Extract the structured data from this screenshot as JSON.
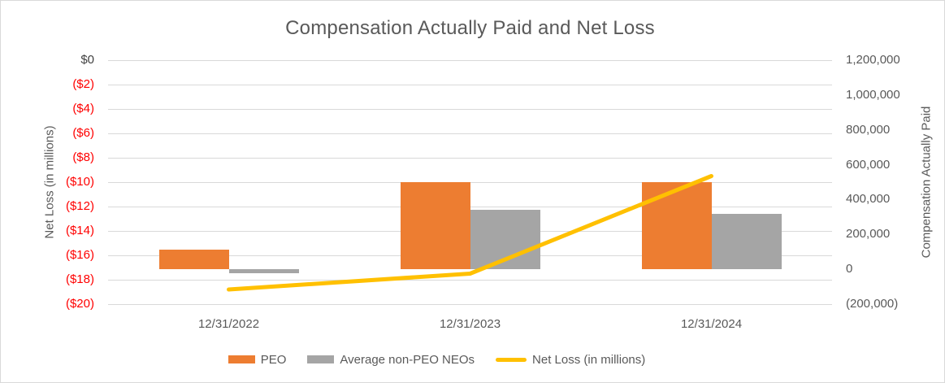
{
  "chart_data": {
    "type": "combo-bar-line",
    "title": "Compensation Actually Paid and Net Loss",
    "categories": [
      "12/31/2022",
      "12/31/2023",
      "12/31/2024"
    ],
    "bar_series": [
      {
        "name": "PEO",
        "color": "#ED7D31",
        "axis": "right",
        "values": [
          112000,
          500000,
          500000
        ]
      },
      {
        "name": "Average non-PEO NEOs",
        "color": "#A5A5A5",
        "axis": "right",
        "values": [
          -23000,
          340000,
          320000
        ]
      }
    ],
    "line_series": {
      "name": "Net Loss (in millions)",
      "color": "#FFC000",
      "axis": "left",
      "values": [
        -18.8,
        -17.5,
        -9.5
      ]
    },
    "left_axis": {
      "title": "Net Loss (in millions)",
      "min": -20,
      "max": 0,
      "step": 2,
      "tick_labels": [
        "$0",
        "($2)",
        "($4)",
        "($6)",
        "($8)",
        "($10)",
        "($12)",
        "($14)",
        "($16)",
        "($18)",
        "($20)"
      ],
      "zero_label_color": "#404040",
      "negative_label_color": "#FF0000"
    },
    "right_axis": {
      "title": "Compensation Actually Paid",
      "min": -200000,
      "max": 1200000,
      "step": 200000,
      "tick_labels": [
        "1,200,000",
        "1,000,000",
        "800,000",
        "600,000",
        "400,000",
        "200,000",
        "0",
        "(200,000)"
      ]
    },
    "legend": [
      {
        "type": "bar",
        "color": "#ED7D31",
        "label": "PEO"
      },
      {
        "type": "bar",
        "color": "#A5A5A5",
        "label": "Average non-PEO NEOs"
      },
      {
        "type": "line",
        "color": "#FFC000",
        "label": "Net Loss (in millions)"
      }
    ],
    "grid": true,
    "gridline_color": "#D9D9D9",
    "legend_position": "bottom",
    "title_color": "#595959"
  }
}
